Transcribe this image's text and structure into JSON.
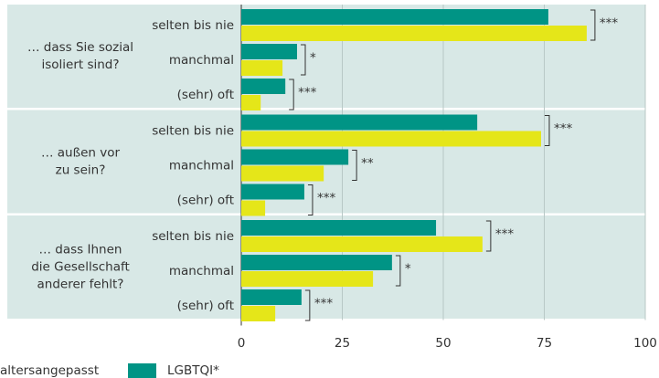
{
  "chart_data": {
    "type": "bar",
    "orientation": "horizontal",
    "groups": [
      [
        "… dass Sie sozial",
        "isoliert sind?"
      ],
      [
        "… außen vor",
        "zu sein?"
      ],
      [
        "… dass Ihnen",
        "die Gesellschaft",
        "anderer fehlt?"
      ]
    ],
    "categories": [
      "selten bis nie",
      "manchmal",
      "(sehr) oft",
      "selten bis nie",
      "manchmal",
      "(sehr) oft",
      "selten bis nie",
      "manchmal",
      "(sehr) oft"
    ],
    "series": [
      {
        "name": "LGBTQI*",
        "color": "#009485",
        "values": [
          76,
          13.8,
          10.9,
          58.4,
          26.5,
          15.6,
          48.2,
          37.3,
          14.9
        ]
      },
      {
        "name": "altersangepasst",
        "color": "#e5e619",
        "values": [
          85.5,
          10.2,
          4.8,
          74.2,
          20.4,
          5.9,
          59.7,
          32.6,
          8.4
        ]
      }
    ],
    "significance": [
      "***",
      "*",
      "***",
      "***",
      "**",
      "***",
      "***",
      "*",
      "***"
    ],
    "xlim": [
      0,
      100
    ],
    "xticks": [
      0,
      25,
      50,
      75,
      100
    ],
    "grid": true
  }
}
